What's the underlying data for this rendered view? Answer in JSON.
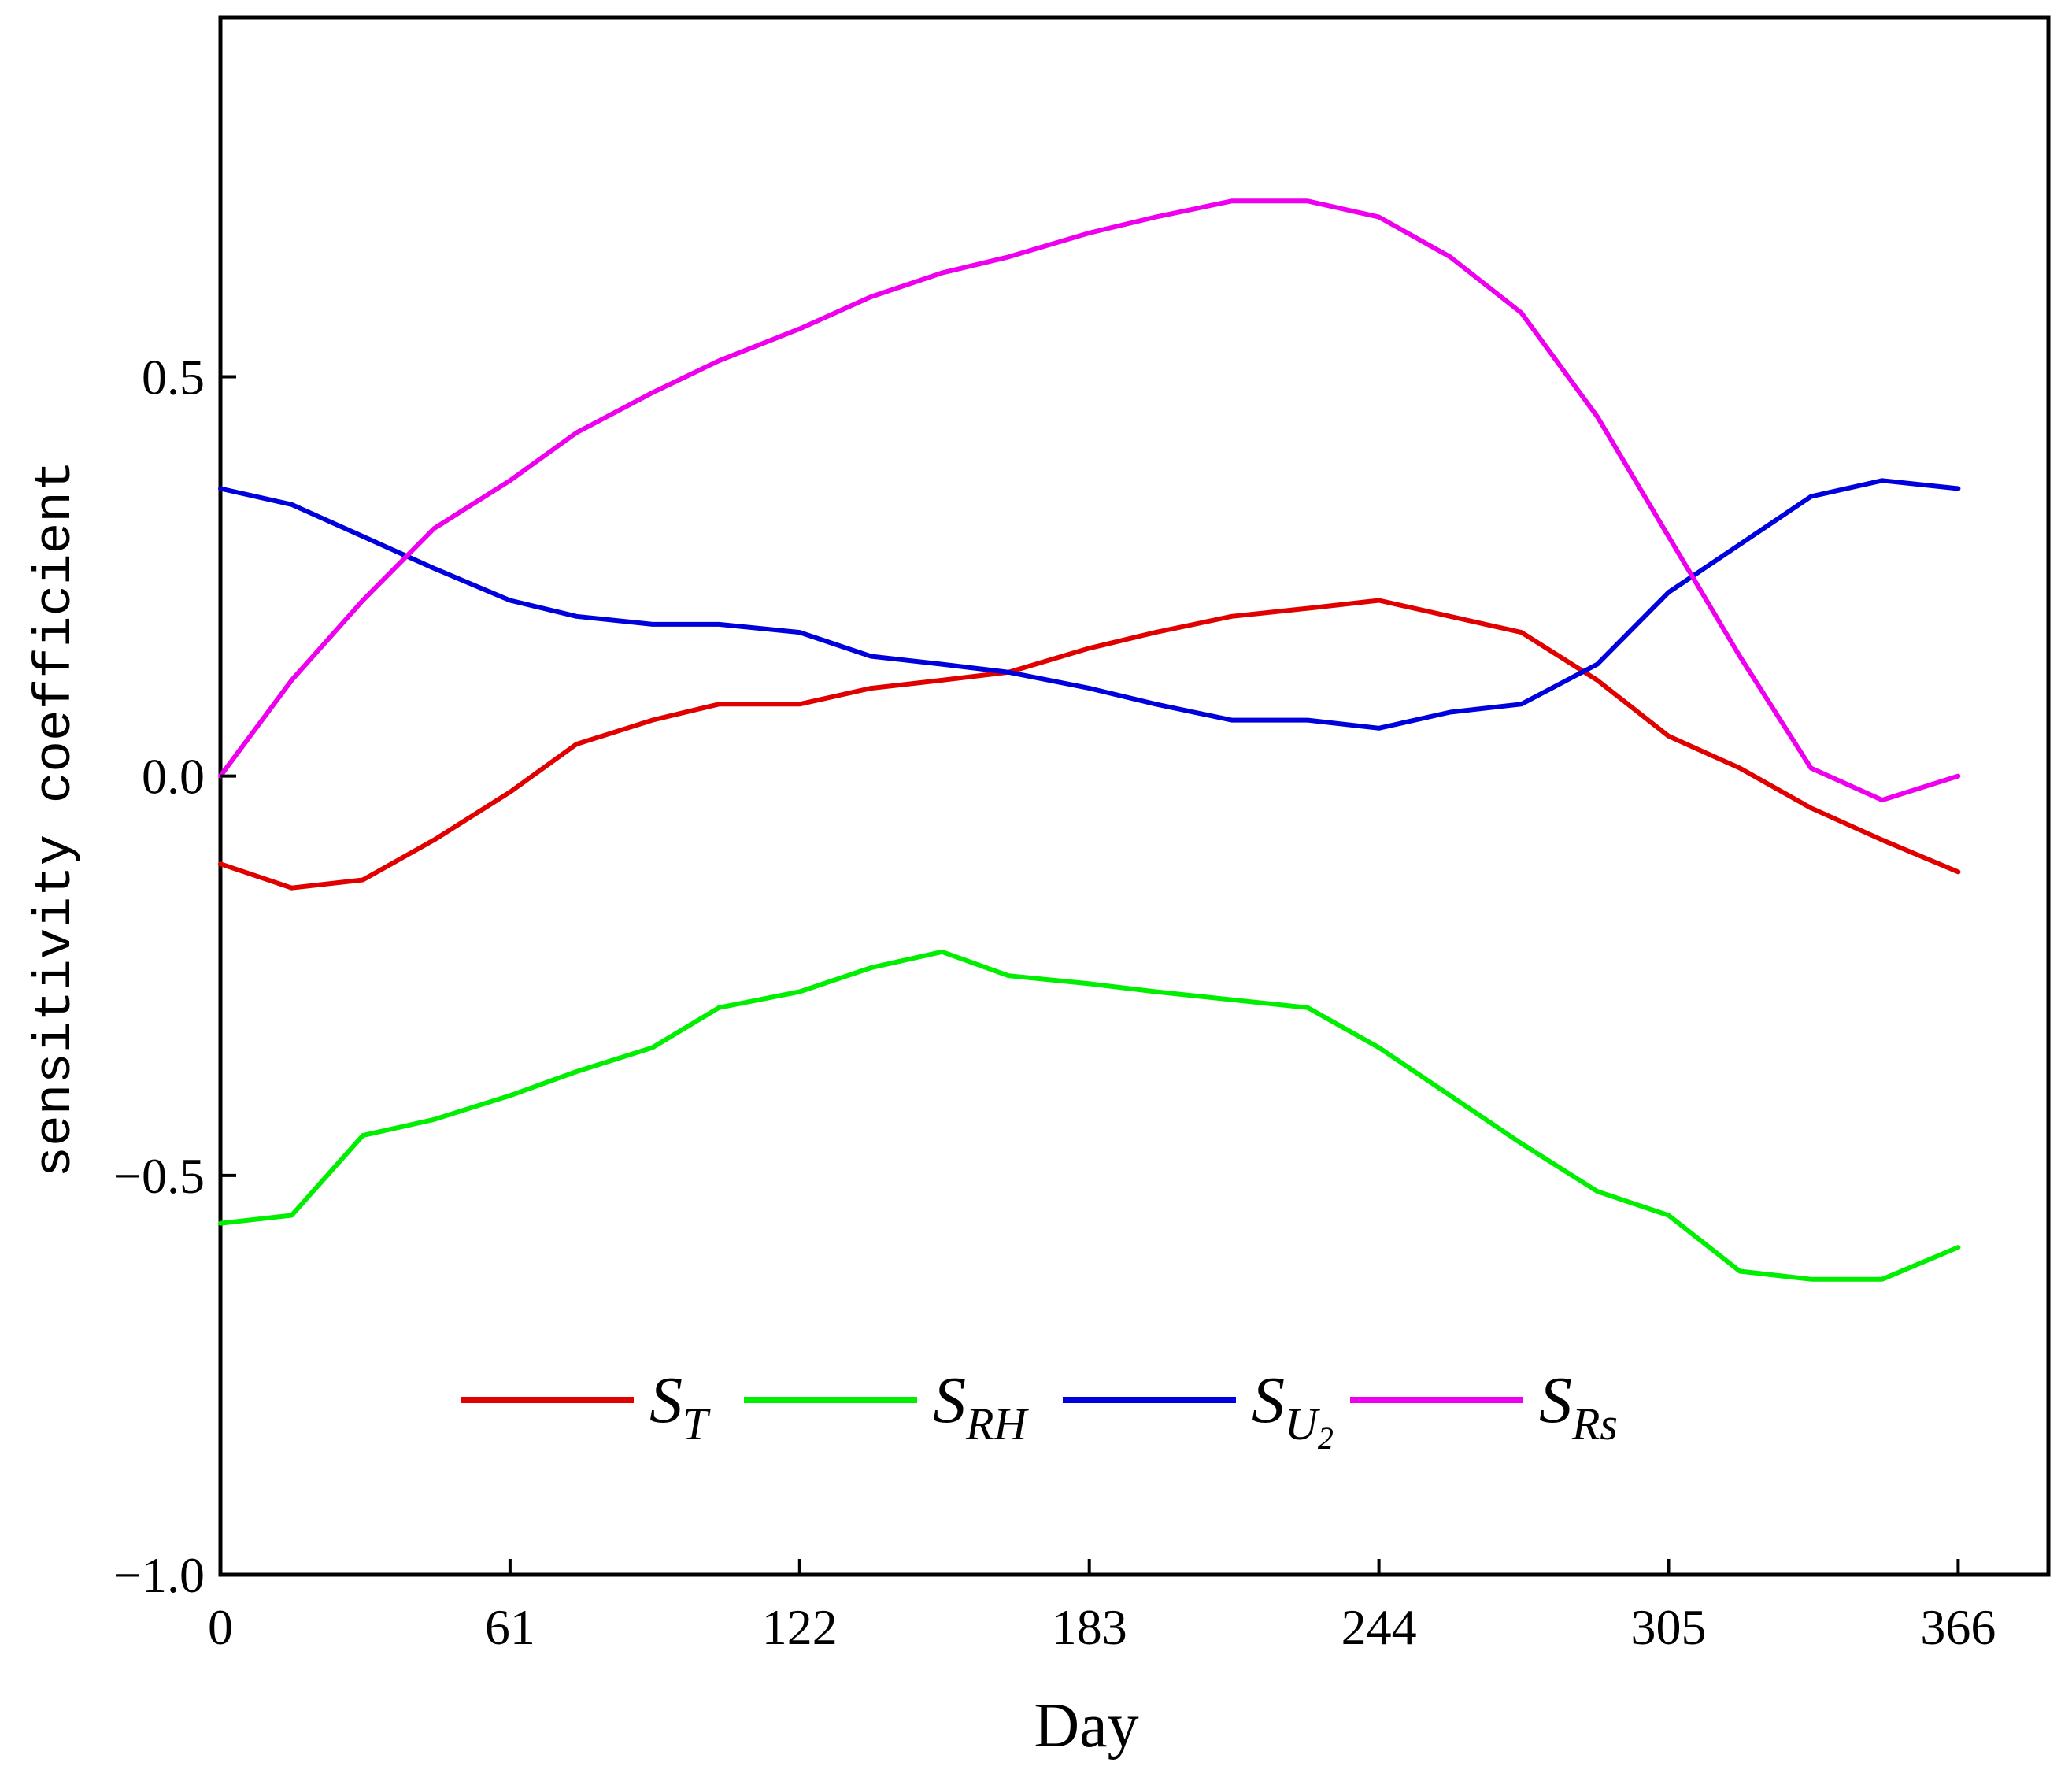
{
  "chart_data": {
    "type": "line",
    "title": "",
    "xlabel": "Day",
    "ylabel": "sensitivity coefficient",
    "xlim": [
      0,
      385
    ],
    "ylim": [
      -1.0,
      0.95
    ],
    "x_ticks": [
      0,
      61,
      122,
      183,
      244,
      305,
      366
    ],
    "x_tick_labels": [
      "0",
      "61",
      "122",
      "183",
      "244",
      "305",
      "366"
    ],
    "y_ticks": [
      -1.0,
      -0.5,
      0.0,
      0.5
    ],
    "y_tick_labels": [
      "−1.0",
      "−0.5",
      "0.0",
      "0.5"
    ],
    "grid": false,
    "legend_position": "bottom-center",
    "x": [
      0,
      15,
      30,
      45,
      61,
      75,
      91,
      105,
      122,
      137,
      152,
      166,
      183,
      197,
      213,
      229,
      244,
      259,
      274,
      290,
      305,
      320,
      335,
      350,
      366
    ],
    "series": [
      {
        "name": "S",
        "subscript": "T",
        "color": "#e00000",
        "values": [
          -0.11,
          -0.14,
          -0.13,
          -0.08,
          -0.02,
          0.04,
          0.07,
          0.09,
          0.09,
          0.11,
          0.12,
          0.13,
          0.16,
          0.18,
          0.2,
          0.21,
          0.22,
          0.2,
          0.18,
          0.12,
          0.05,
          0.01,
          -0.04,
          -0.08,
          -0.12
        ]
      },
      {
        "name": "S",
        "subscript": "RH",
        "color": "#00ee00",
        "values": [
          -0.56,
          -0.55,
          -0.45,
          -0.43,
          -0.4,
          -0.37,
          -0.34,
          -0.29,
          -0.27,
          -0.24,
          -0.22,
          -0.25,
          -0.26,
          -0.27,
          -0.28,
          -0.29,
          -0.34,
          -0.4,
          -0.46,
          -0.52,
          -0.55,
          -0.62,
          -0.63,
          -0.63,
          -0.59
        ]
      },
      {
        "name": "S",
        "subscript": "U2",
        "subscript_main": "U",
        "subscript_sub": "2",
        "color": "#0000dd",
        "values": [
          0.36,
          0.34,
          0.3,
          0.26,
          0.22,
          0.2,
          0.19,
          0.19,
          0.18,
          0.15,
          0.14,
          0.13,
          0.11,
          0.09,
          0.07,
          0.07,
          0.06,
          0.08,
          0.09,
          0.14,
          0.23,
          0.29,
          0.35,
          0.37,
          0.36
        ]
      },
      {
        "name": "S",
        "subscript": "Rs",
        "color": "#ee00ee",
        "values": [
          0.0,
          0.12,
          0.22,
          0.31,
          0.37,
          0.43,
          0.48,
          0.52,
          0.56,
          0.6,
          0.63,
          0.65,
          0.68,
          0.7,
          0.72,
          0.72,
          0.7,
          0.65,
          0.58,
          0.45,
          0.3,
          0.15,
          0.01,
          -0.03,
          0.0
        ]
      }
    ]
  }
}
